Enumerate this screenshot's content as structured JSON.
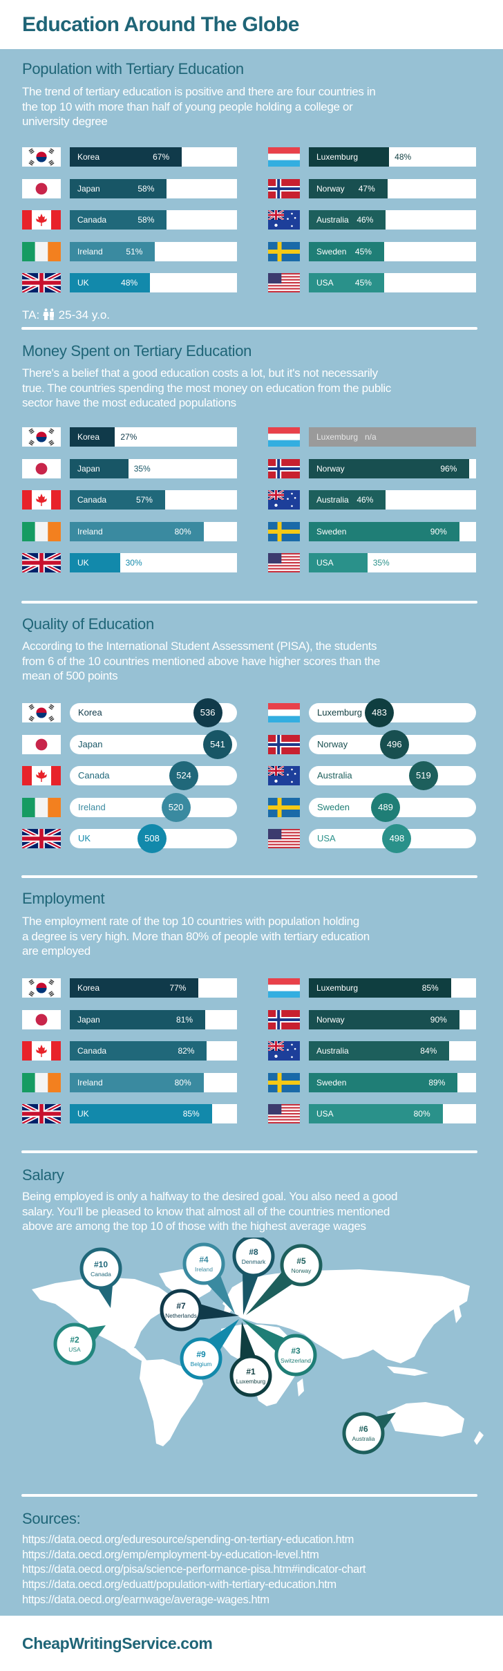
{
  "title": "Education Around The Globe",
  "colors": {
    "heading": "#1f6577",
    "background": "#97c1d4",
    "left": [
      "#103a4a",
      "#185666",
      "#20687a",
      "#3a8aa0",
      "#1289ab"
    ],
    "right": [
      "#0f3e40",
      "#184f50",
      "#1d5f5c",
      "#1f7e76",
      "#2a918a"
    ],
    "na": "#9a9a9a"
  },
  "countries": {
    "left": [
      {
        "name": "Korea",
        "flag": "flag-south-korea"
      },
      {
        "name": "Japan",
        "flag": "flag-japan"
      },
      {
        "name": "Canada",
        "flag": "flag-canada"
      },
      {
        "name": "Ireland",
        "flag": "flag-ireland"
      },
      {
        "name": "UK",
        "flag": "flag-uk"
      }
    ],
    "right": [
      {
        "name": "Luxemburg",
        "flag": "flag-luxembourg"
      },
      {
        "name": "Norway",
        "flag": "flag-norway"
      },
      {
        "name": "Australia",
        "flag": "flag-australia"
      },
      {
        "name": "Sweden",
        "flag": "flag-sweden"
      },
      {
        "name": "USA",
        "flag": "flag-usa"
      }
    ]
  },
  "sections": {
    "population": {
      "heading": "Population with Tertiary Education",
      "description": [
        "The trend of tertiary education is positive and there are four countries in",
        "the top 10 with more than half of young people holding a college or",
        "university degree"
      ],
      "left": [
        {
          "value": 67,
          "label": "67%"
        },
        {
          "value": 58,
          "label": "58%"
        },
        {
          "value": 58,
          "label": "58%"
        },
        {
          "value": 51,
          "label": "51%"
        },
        {
          "value": 48,
          "label": "48%"
        }
      ],
      "right": [
        {
          "value": 48,
          "label": "48%"
        },
        {
          "value": 47,
          "label": "47%"
        },
        {
          "value": 46,
          "label": "46%"
        },
        {
          "value": 45,
          "label": "45%"
        },
        {
          "value": 45,
          "label": "45%"
        }
      ],
      "note": {
        "prefix": "TA:",
        "icon": "people-icon",
        "text": "25-34 y.o."
      }
    },
    "money": {
      "heading": "Money Spent on Tertiary Education",
      "description": [
        "There's a belief that a good education costs a lot, but it's not necessarily",
        "true. The countries spending the most money on education from the public",
        "sector have the most educated populations"
      ],
      "left": [
        {
          "value": 27,
          "label": "27%"
        },
        {
          "value": 35,
          "label": "35%"
        },
        {
          "value": 57,
          "label": "57%"
        },
        {
          "value": 80,
          "label": "80%"
        },
        {
          "value": 30,
          "label": "30%"
        }
      ],
      "right": [
        {
          "value": null,
          "label": "n/a"
        },
        {
          "value": 96,
          "label": "96%"
        },
        {
          "value": 46,
          "label": "46%"
        },
        {
          "value": 90,
          "label": "90%"
        },
        {
          "value": 35,
          "label": "35%"
        }
      ]
    },
    "quality": {
      "heading": "Quality of Education",
      "description": [
        "According to the International Student Assessment (PISA), the students",
        "from 6 of the 10 countries mentioned above have higher scores than the",
        "mean of 500 points"
      ],
      "left": [
        {
          "value": 536,
          "label": "536"
        },
        {
          "value": 541,
          "label": "541"
        },
        {
          "value": 524,
          "label": "524"
        },
        {
          "value": 520,
          "label": "520"
        },
        {
          "value": 508,
          "label": "508"
        }
      ],
      "right": [
        {
          "value": 483,
          "label": "483"
        },
        {
          "value": 496,
          "label": "496"
        },
        {
          "value": 519,
          "label": "519"
        },
        {
          "value": 489,
          "label": "489"
        },
        {
          "value": 498,
          "label": "498"
        }
      ]
    },
    "employment": {
      "heading": "Employment",
      "description": [
        "The employment rate of the top 10 countries with population holding",
        "a degree is very high. More than 80% of people with tertiary education",
        "are employed"
      ],
      "left": [
        {
          "value": 77,
          "label": "77%"
        },
        {
          "value": 81,
          "label": "81%"
        },
        {
          "value": 82,
          "label": "82%"
        },
        {
          "value": 80,
          "label": "80%"
        },
        {
          "value": 85,
          "label": "85%"
        }
      ],
      "right": [
        {
          "value": 85,
          "label": "85%"
        },
        {
          "value": 90,
          "label": "90%"
        },
        {
          "value": 84,
          "label": "84%"
        },
        {
          "value": 89,
          "label": "89%"
        },
        {
          "value": 80,
          "label": "80%"
        }
      ]
    },
    "salary": {
      "heading": "Salary",
      "description": [
        "Being employed is only a halfway to the desired goal. You also need a good",
        "salary. You'll be pleased to know that almost all of the countries mentioned",
        "above are among the top 10 of those with the highest average wages"
      ],
      "ranking": [
        {
          "rank": "#10",
          "country": "Canada",
          "color": "#20687a"
        },
        {
          "rank": "#4",
          "country": "Ireland",
          "color": "#3a8aa0"
        },
        {
          "rank": "#8",
          "country": "Denmark",
          "color": "#185666"
        },
        {
          "rank": "#5",
          "country": "Norway",
          "color": "#1d5f5c"
        },
        {
          "rank": "#7",
          "country": "Netherlands",
          "color": "#103a4a"
        },
        {
          "rank": "#2",
          "country": "USA",
          "color": "#23877e"
        },
        {
          "rank": "#9",
          "country": "Belgium",
          "color": "#1289ab"
        },
        {
          "rank": "#1",
          "country": "Luxemburg",
          "color": "#0f3e40"
        },
        {
          "rank": "#3",
          "country": "Switzerland",
          "color": "#1f7e76"
        },
        {
          "rank": "#6",
          "country": "Australia",
          "color": "#1d5f5c"
        }
      ]
    }
  },
  "sources": {
    "heading": "Sources:",
    "links": [
      "https://data.oecd.org/eduresource/spending-on-tertiary-education.htm",
      "https://data.oecd.org/emp/employment-by-education-level.htm",
      "https://data.oecd.org/pisa/science-performance-pisa.htm#indicator-chart",
      "https://data.oecd.org/eduatt/population-with-tertiary-education.htm",
      "https://data.oecd.org/earnwage/average-wages.htm"
    ]
  },
  "footer": "CheapWritingService.com"
}
